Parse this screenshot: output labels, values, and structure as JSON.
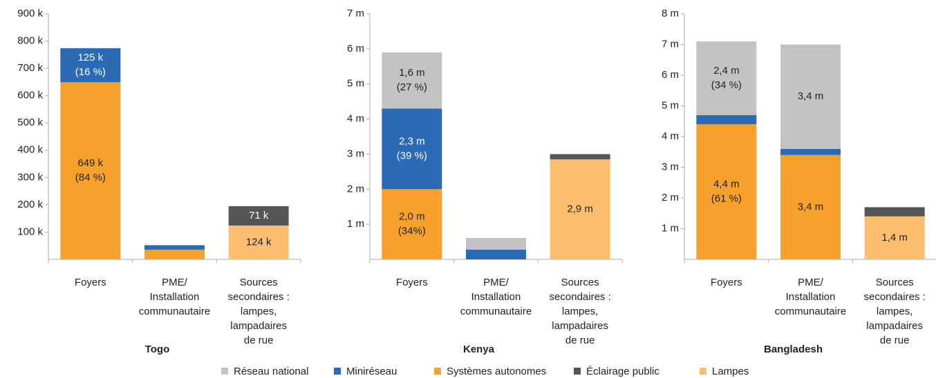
{
  "chart_data": [
    {
      "type": "bar",
      "stacked": true,
      "title": "Togo",
      "categories": [
        [
          "Foyers"
        ],
        [
          "PME/",
          "Installation",
          "communautaire"
        ],
        [
          "Sources",
          "secondaires :",
          "lampes,",
          "lampadaires",
          "de rue"
        ]
      ],
      "ylim": [
        0,
        900
      ],
      "yticks": [
        {
          "value": 100,
          "label": "100 k"
        },
        {
          "value": 200,
          "label": "200 k"
        },
        {
          "value": 300,
          "label": "300 k"
        },
        {
          "value": 400,
          "label": "400 k"
        },
        {
          "value": 500,
          "label": "500 k"
        },
        {
          "value": 600,
          "label": "600 k"
        },
        {
          "value": 700,
          "label": "700 k"
        },
        {
          "value": 800,
          "label": "800 k"
        },
        {
          "value": 900,
          "label": "900 k"
        }
      ],
      "series": [
        {
          "name": "Réseau national",
          "color": "#c3c3c3",
          "values": [
            null,
            null,
            null
          ]
        },
        {
          "name": "Miniréseau",
          "color": "#2b6ab4",
          "values": [
            125,
            17,
            null
          ],
          "value_labels": [
            [
              "125 k",
              "(16 %)"
            ],
            null,
            null
          ]
        },
        {
          "name": "Systèmes autonomes",
          "color": "#f5a12c",
          "values": [
            649,
            35,
            null
          ],
          "value_labels": [
            [
              "649 k",
              "(84 %)"
            ],
            null,
            null
          ]
        },
        {
          "name": "Éclairage public",
          "color": "#555555",
          "values": [
            null,
            null,
            71
          ],
          "value_labels": [
            null,
            null,
            [
              "71 k"
            ]
          ]
        },
        {
          "name": "Lampes",
          "color": "#fbbe6e",
          "values": [
            null,
            null,
            124
          ],
          "value_labels": [
            null,
            null,
            [
              "124 k"
            ]
          ]
        }
      ]
    },
    {
      "type": "bar",
      "stacked": true,
      "title": "Kenya",
      "categories": [
        [
          "Foyers"
        ],
        [
          "PME/",
          "Installation",
          "communautaire"
        ],
        [
          "Sources",
          "secondaires :",
          "lampes,",
          "lampadaires",
          "de rue"
        ]
      ],
      "ylim": [
        0,
        7
      ],
      "yticks": [
        {
          "value": 1,
          "label": "1 m"
        },
        {
          "value": 2,
          "label": "2 m"
        },
        {
          "value": 3,
          "label": "3 m"
        },
        {
          "value": 4,
          "label": "4 m"
        },
        {
          "value": 5,
          "label": "5 m"
        },
        {
          "value": 6,
          "label": "6 m"
        },
        {
          "value": 7,
          "label": "7 m"
        }
      ],
      "series": [
        {
          "name": "Réseau national",
          "color": "#c3c3c3",
          "values": [
            1.6,
            0.33,
            null
          ],
          "value_labels": [
            [
              "1,6 m",
              "(27 %)"
            ],
            null,
            null
          ]
        },
        {
          "name": "Miniréseau",
          "color": "#2b6ab4",
          "values": [
            2.3,
            0.28,
            null
          ],
          "value_labels": [
            [
              "2,3 m",
              "(39 %)"
            ],
            null,
            null
          ]
        },
        {
          "name": "Systèmes autonomes",
          "color": "#f5a12c",
          "values": [
            2.0,
            null,
            null
          ],
          "value_labels": [
            [
              "2,0 m",
              "(34%)"
            ],
            null,
            null
          ]
        },
        {
          "name": "Éclairage public",
          "color": "#555555",
          "values": [
            null,
            null,
            0.15
          ]
        },
        {
          "name": "Lampes",
          "color": "#fbbe6e",
          "values": [
            null,
            null,
            2.85
          ],
          "value_labels": [
            null,
            null,
            [
              "2,9 m"
            ]
          ]
        }
      ]
    },
    {
      "type": "bar",
      "stacked": true,
      "title": "Bangladesh",
      "categories": [
        [
          "Foyers"
        ],
        [
          "PME/",
          "Installation",
          "communautaire"
        ],
        [
          "Sources",
          "secondaires :",
          "lampes,",
          "lampadaires",
          "de rue"
        ]
      ],
      "ylim": [
        0,
        8
      ],
      "yticks": [
        {
          "value": 1,
          "label": "1 m"
        },
        {
          "value": 2,
          "label": "2 m"
        },
        {
          "value": 3,
          "label": "3 m"
        },
        {
          "value": 4,
          "label": "4 m"
        },
        {
          "value": 5,
          "label": "5 m"
        },
        {
          "value": 6,
          "label": "6 m"
        },
        {
          "value": 7,
          "label": "7 m"
        },
        {
          "value": 8,
          "label": "8 m"
        }
      ],
      "series": [
        {
          "name": "Réseau national",
          "color": "#c3c3c3",
          "values": [
            2.4,
            3.4,
            null
          ],
          "value_labels": [
            [
              "2,4 m",
              "(34 %)"
            ],
            [
              "3,4 m"
            ],
            null
          ]
        },
        {
          "name": "Miniréseau",
          "color": "#2b6ab4",
          "values": [
            0.3,
            0.2,
            null
          ]
        },
        {
          "name": "Systèmes autonomes",
          "color": "#f5a12c",
          "values": [
            4.4,
            3.4,
            null
          ],
          "value_labels": [
            [
              "4,4 m",
              "(61 %)"
            ],
            [
              "3,4 m"
            ],
            null
          ]
        },
        {
          "name": "Éclairage public",
          "color": "#555555",
          "values": [
            null,
            null,
            0.3
          ]
        },
        {
          "name": "Lampes",
          "color": "#fbbe6e",
          "values": [
            null,
            null,
            1.4
          ],
          "value_labels": [
            null,
            null,
            [
              "1,4 m"
            ]
          ]
        }
      ]
    }
  ]
}
